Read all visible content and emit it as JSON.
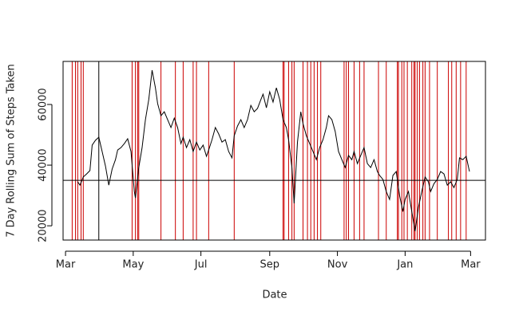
{
  "chart_data": {
    "type": "line",
    "xlabel": "Date",
    "ylabel": "7 Day Rolling Sum of Steps Taken",
    "x": [
      11,
      13,
      16,
      19,
      22,
      24,
      27,
      30,
      33,
      36,
      39,
      42,
      45,
      47,
      50,
      53,
      56,
      59,
      62,
      63,
      66,
      69,
      72,
      75,
      78,
      81,
      83,
      86,
      89,
      92,
      95,
      98,
      101,
      104,
      106,
      109,
      112,
      115,
      118,
      121,
      124,
      127,
      129,
      132,
      135,
      138,
      141,
      144,
      147,
      150,
      152,
      155,
      158,
      161,
      164,
      167,
      170,
      173,
      176,
      178,
      181,
      184,
      187,
      190,
      193,
      196,
      199,
      201,
      204,
      206,
      209,
      212,
      214,
      217,
      220,
      223,
      226,
      229,
      232,
      235,
      237,
      240,
      243,
      246,
      249,
      252,
      255,
      258,
      260,
      263,
      266,
      269,
      272,
      275,
      278,
      281,
      283,
      286,
      289,
      292,
      295,
      298,
      301,
      304,
      306,
      309,
      312,
      315,
      318,
      321,
      324,
      327,
      329,
      332,
      335,
      338,
      341,
      344,
      347,
      350,
      353,
      355,
      358,
      361,
      364
    ],
    "series": [
      {
        "color": "#000000",
        "values": [
          34500,
          33400,
          36100,
          37100,
          38200,
          46600,
          48200,
          49200,
          44500,
          39700,
          33400,
          38700,
          41800,
          45000,
          45800,
          47100,
          48700,
          44500,
          31300,
          29200,
          39200,
          45800,
          55000,
          61600,
          71300,
          65500,
          60300,
          56300,
          57600,
          55000,
          52400,
          55500,
          52400,
          47100,
          49200,
          45800,
          48400,
          44500,
          47600,
          45000,
          46600,
          42900,
          45000,
          48400,
          52400,
          50300,
          47600,
          48400,
          44500,
          42400,
          49700,
          52900,
          55000,
          52400,
          55000,
          59700,
          57600,
          58700,
          61600,
          63400,
          58900,
          64200,
          60800,
          65500,
          61600,
          55000,
          52400,
          48400,
          39200,
          27400,
          47600,
          57600,
          53700,
          49700,
          47100,
          44500,
          41800,
          45800,
          48400,
          52400,
          56300,
          55000,
          51100,
          44500,
          41800,
          39200,
          43200,
          41800,
          44500,
          40500,
          43200,
          45800,
          40500,
          39200,
          41800,
          37900,
          36600,
          35300,
          31300,
          28700,
          36600,
          37900,
          30000,
          24700,
          28700,
          31300,
          24700,
          18200,
          26100,
          31300,
          36100,
          34500,
          31300,
          33900,
          35300,
          37900,
          37100,
          33400,
          34500,
          32600,
          35300,
          42400,
          41800,
          42900,
          37900
        ]
      }
    ],
    "hline": {
      "y": 35000,
      "color": "#000000"
    },
    "black_vline": {
      "x": 30,
      "color": "#000000"
    },
    "red_vlines": {
      "color": "#cc0000",
      "x": [
        6,
        9,
        11,
        14,
        16,
        60,
        63,
        65,
        66,
        86,
        99,
        106,
        115,
        118,
        129,
        152,
        196,
        197,
        201,
        204,
        206,
        214,
        218,
        221,
        224,
        227,
        230,
        251,
        253,
        255,
        260,
        265,
        269,
        282,
        289,
        299,
        300,
        303,
        305,
        308,
        312,
        314,
        315,
        317,
        319,
        322,
        324,
        328,
        335,
        345,
        348,
        352,
        356,
        361
      ]
    },
    "xlim": [
      -2.2,
      378.4
    ],
    "xticks": [
      {
        "value": 0,
        "label": "Mar"
      },
      {
        "value": 61,
        "label": "May"
      },
      {
        "value": 122,
        "label": "Jul"
      },
      {
        "value": 184,
        "label": "Sep"
      },
      {
        "value": 245,
        "label": "Nov"
      },
      {
        "value": 306,
        "label": "Jan"
      },
      {
        "value": 365,
        "label": "Mar"
      }
    ],
    "ylim": [
      15300,
      74200
    ],
    "yticks": [
      20000,
      40000,
      60000
    ]
  }
}
